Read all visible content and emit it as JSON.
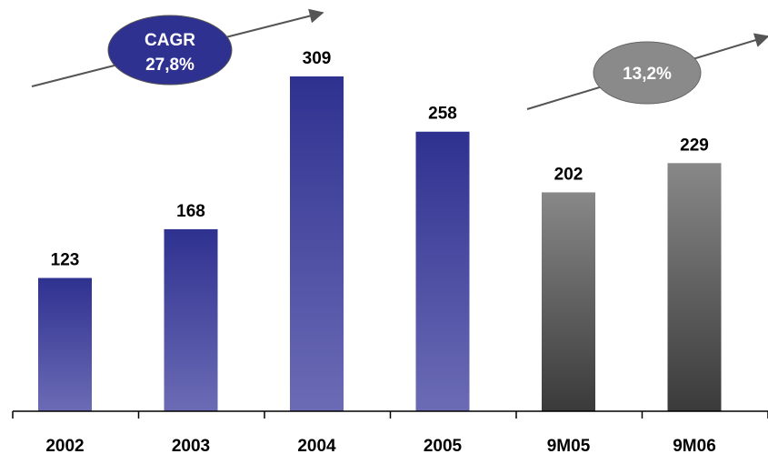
{
  "chart_data": {
    "type": "bar",
    "categories": [
      "2002",
      "2003",
      "2004",
      "2005",
      "9M05",
      "9M06"
    ],
    "values": [
      123,
      168,
      309,
      258,
      202,
      229
    ],
    "series": [
      {
        "values": [
          123,
          168,
          309,
          258,
          null,
          null
        ],
        "color_top": "#2f3190",
        "color_bottom": "#6b6bb5"
      },
      {
        "values": [
          null,
          null,
          null,
          null,
          202,
          229
        ],
        "color_top": "#888888",
        "color_bottom": "#3a3a3a"
      }
    ],
    "annotations": [
      {
        "line1": "CAGR",
        "line2": "27,8%",
        "color": "#2f3190"
      },
      {
        "line1": "13,2%",
        "line2": "",
        "color": "#8a8a8a"
      }
    ],
    "ylim": [
      0,
      309
    ],
    "grid": false,
    "legend": "none"
  }
}
